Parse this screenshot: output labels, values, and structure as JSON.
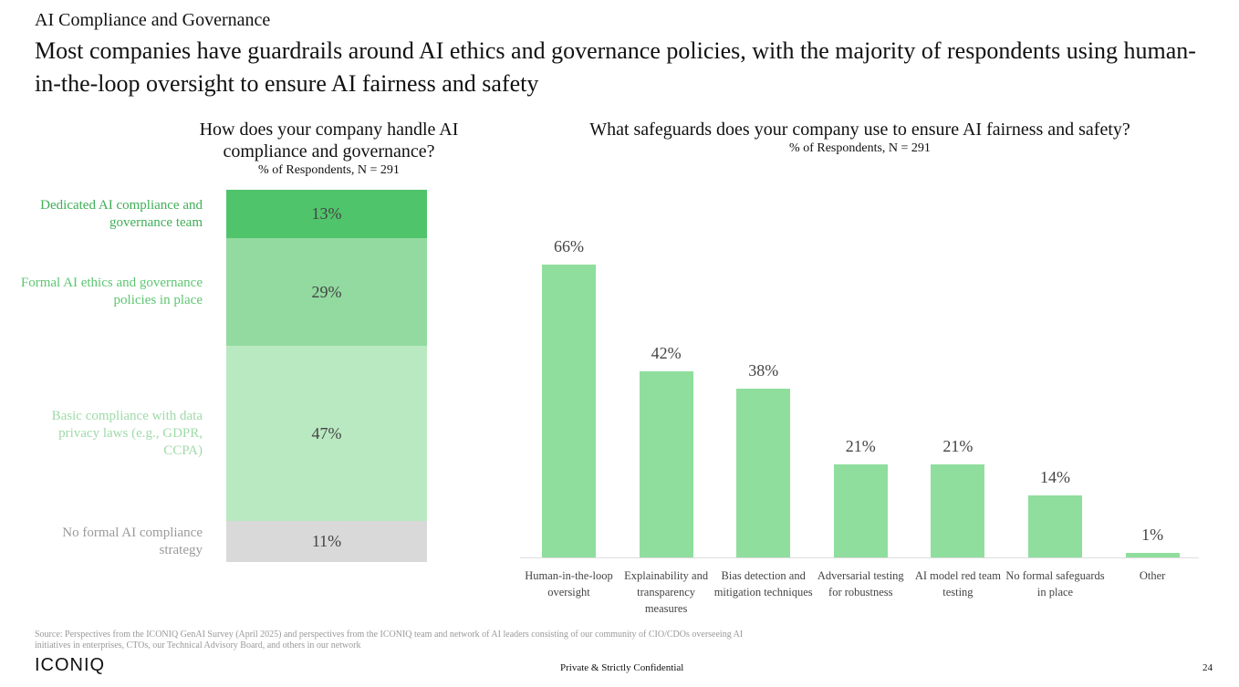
{
  "header": {
    "kicker": "AI Compliance and Governance",
    "title": "Most companies have guardrails around AI ethics and governance policies, with the majority of respondents using human-in-the-loop oversight to ensure AI fairness and safety"
  },
  "chart_data": [
    {
      "type": "stacked_bar",
      "title": "How does your company handle AI compliance and governance?",
      "subtitle": "% of Respondents, N = 291",
      "categories": [
        "Dedicated AI compliance and governance team",
        "Formal AI ethics and governance policies in place",
        "Basic compliance with data privacy laws (e.g., GDPR, CCPA)",
        "No formal AI compliance strategy"
      ],
      "values": [
        13,
        29,
        47,
        11
      ],
      "value_labels": [
        "13%",
        "29%",
        "47%",
        "11%"
      ],
      "colors": [
        "#50c46b",
        "#92da9f",
        "#b9e9c1",
        "#d9d9d9"
      ],
      "label_colors": [
        "#3fae57",
        "#5dc672",
        "#9fdaa9",
        "#9a9a9a"
      ]
    },
    {
      "type": "bar",
      "title": "What safeguards does your company use to ensure AI fairness and safety?",
      "subtitle": "% of Respondents, N = 291",
      "categories": [
        "Human-in-the-loop oversight",
        "Explainability and transparency measures",
        "Bias detection and mitigation techniques",
        "Adversarial testing for robustness",
        "AI model red team testing",
        "No formal safeguards in place",
        "Other"
      ],
      "values": [
        66,
        42,
        38,
        21,
        21,
        14,
        1
      ],
      "value_labels": [
        "66%",
        "42%",
        "38%",
        "21%",
        "21%",
        "14%",
        "1%"
      ],
      "color": "#8fde9d"
    }
  ],
  "footer": {
    "source": "Source: Perspectives from the ICONIQ GenAI Survey (April 2025) and perspectives from the ICONIQ team and network of AI leaders consisting of our community of CIO/CDOs overseeing AI initiatives in enterprises, CTOs, our Technical Advisory Board, and others in our network",
    "logo": "ICONIQ",
    "confidential": "Private & Strictly Confidential",
    "page": "24"
  }
}
